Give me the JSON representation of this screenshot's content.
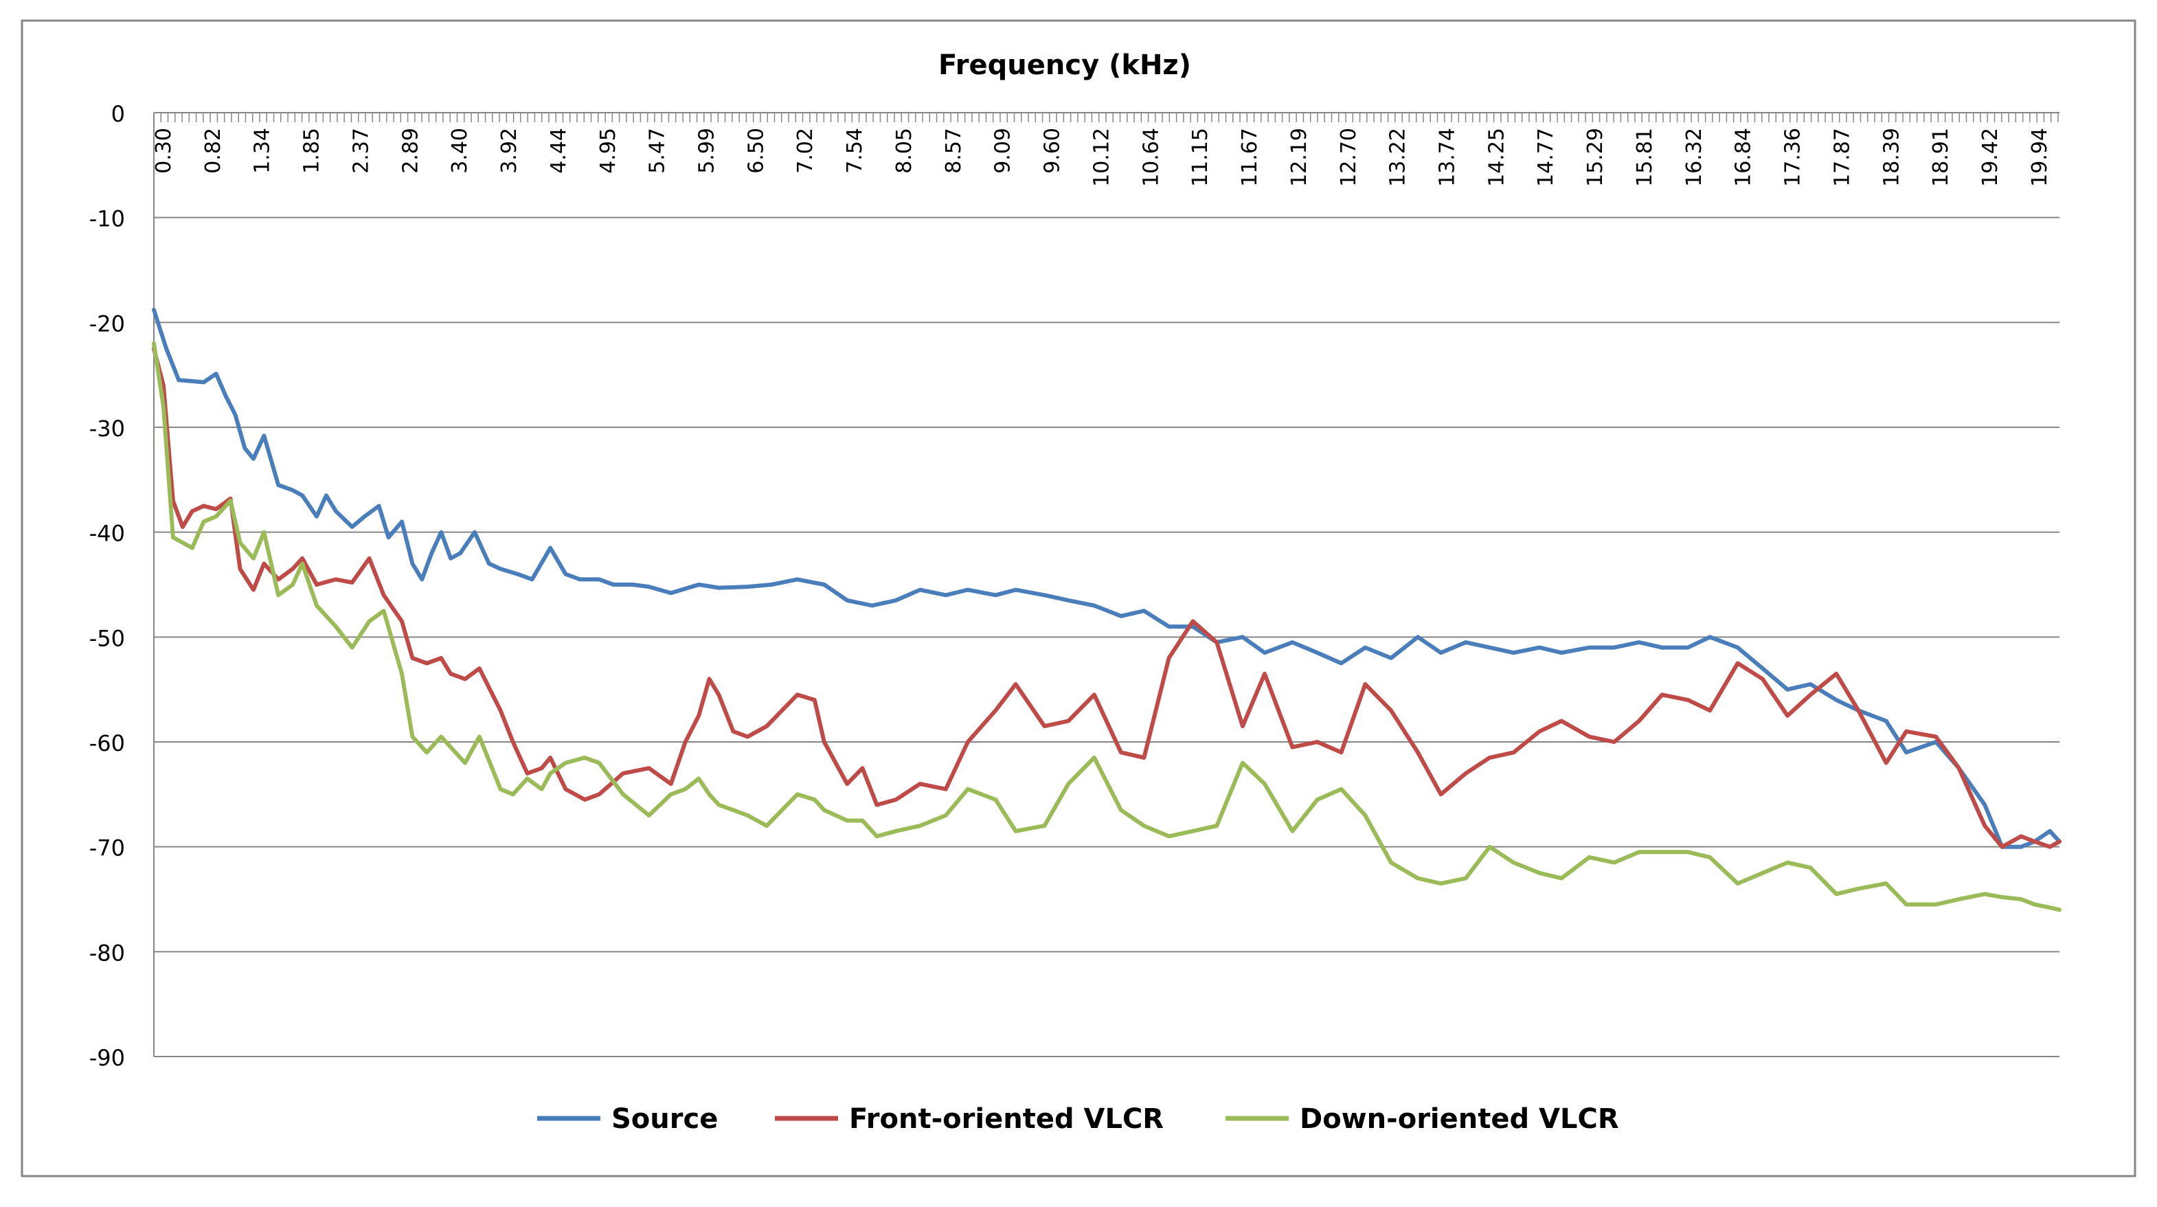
{
  "chart_data": {
    "type": "line",
    "title": "Frequency (kHz)",
    "xlabel": "Frequency (kHz)",
    "ylabel": "",
    "ylim": [
      -90,
      0
    ],
    "yticks": [
      0,
      -10,
      -20,
      -30,
      -40,
      -50,
      -60,
      -70,
      -80,
      -90
    ],
    "x_range_khz": [
      0.3,
      20.2
    ],
    "x_tick_labels": [
      "0.30",
      "0.82",
      "1.34",
      "1.85",
      "2.37",
      "2.89",
      "3.40",
      "3.92",
      "4.44",
      "4.95",
      "5.47",
      "5.99",
      "6.50",
      "7.02",
      "7.54",
      "8.05",
      "8.57",
      "9.09",
      "9.60",
      "10.12",
      "10.64",
      "11.15",
      "11.67",
      "12.19",
      "12.70",
      "13.22",
      "13.74",
      "14.25",
      "14.77",
      "15.29",
      "15.81",
      "16.32",
      "16.84",
      "17.36",
      "17.87",
      "18.39",
      "18.91",
      "19.42",
      "19.94"
    ],
    "legend_position": "bottom",
    "grid": true,
    "series": [
      {
        "name": "Source",
        "color": "#4A7EBB",
        "points": [
          [
            0.3,
            -18.8
          ],
          [
            0.43,
            -22.5
          ],
          [
            0.56,
            -25.5
          ],
          [
            0.69,
            -25.6
          ],
          [
            0.82,
            -25.7
          ],
          [
            0.95,
            -24.9
          ],
          [
            1.05,
            -27.0
          ],
          [
            1.15,
            -28.8
          ],
          [
            1.25,
            -32.0
          ],
          [
            1.34,
            -33.0
          ],
          [
            1.45,
            -30.8
          ],
          [
            1.6,
            -35.5
          ],
          [
            1.75,
            -36.0
          ],
          [
            1.85,
            -36.5
          ],
          [
            2.0,
            -38.5
          ],
          [
            2.1,
            -36.5
          ],
          [
            2.2,
            -38.0
          ],
          [
            2.37,
            -39.5
          ],
          [
            2.5,
            -38.5
          ],
          [
            2.65,
            -37.5
          ],
          [
            2.75,
            -40.5
          ],
          [
            2.89,
            -39.0
          ],
          [
            3.0,
            -43.0
          ],
          [
            3.1,
            -44.5
          ],
          [
            3.2,
            -42.0
          ],
          [
            3.3,
            -40.0
          ],
          [
            3.4,
            -42.5
          ],
          [
            3.5,
            -42.0
          ],
          [
            3.65,
            -40.0
          ],
          [
            3.8,
            -43.0
          ],
          [
            3.92,
            -43.5
          ],
          [
            4.1,
            -44.0
          ],
          [
            4.25,
            -44.5
          ],
          [
            4.44,
            -41.5
          ],
          [
            4.6,
            -44.0
          ],
          [
            4.75,
            -44.5
          ],
          [
            4.95,
            -44.5
          ],
          [
            5.1,
            -45.0
          ],
          [
            5.3,
            -45.0
          ],
          [
            5.47,
            -45.2
          ],
          [
            5.7,
            -45.8
          ],
          [
            5.99,
            -45.0
          ],
          [
            6.2,
            -45.3
          ],
          [
            6.5,
            -45.2
          ],
          [
            6.75,
            -45.0
          ],
          [
            7.02,
            -44.5
          ],
          [
            7.3,
            -45.0
          ],
          [
            7.54,
            -46.5
          ],
          [
            7.8,
            -47.0
          ],
          [
            8.05,
            -46.5
          ],
          [
            8.3,
            -45.5
          ],
          [
            8.57,
            -46.0
          ],
          [
            8.8,
            -45.5
          ],
          [
            9.09,
            -46.0
          ],
          [
            9.3,
            -45.5
          ],
          [
            9.6,
            -46.0
          ],
          [
            9.85,
            -46.5
          ],
          [
            10.12,
            -47.0
          ],
          [
            10.4,
            -48.0
          ],
          [
            10.64,
            -47.5
          ],
          [
            10.9,
            -49.0
          ],
          [
            11.15,
            -49.0
          ],
          [
            11.4,
            -50.5
          ],
          [
            11.67,
            -50.0
          ],
          [
            11.9,
            -51.5
          ],
          [
            12.19,
            -50.5
          ],
          [
            12.45,
            -51.5
          ],
          [
            12.7,
            -52.5
          ],
          [
            12.95,
            -51.0
          ],
          [
            13.22,
            -52.0
          ],
          [
            13.5,
            -50.0
          ],
          [
            13.74,
            -51.5
          ],
          [
            14.0,
            -50.5
          ],
          [
            14.25,
            -51.0
          ],
          [
            14.5,
            -51.5
          ],
          [
            14.77,
            -51.0
          ],
          [
            15.0,
            -51.5
          ],
          [
            15.29,
            -51.0
          ],
          [
            15.55,
            -51.0
          ],
          [
            15.81,
            -50.5
          ],
          [
            16.05,
            -51.0
          ],
          [
            16.32,
            -51.0
          ],
          [
            16.55,
            -50.0
          ],
          [
            16.84,
            -51.0
          ],
          [
            17.1,
            -53.0
          ],
          [
            17.36,
            -55.0
          ],
          [
            17.6,
            -54.5
          ],
          [
            17.87,
            -56.0
          ],
          [
            18.1,
            -57.0
          ],
          [
            18.39,
            -58.0
          ],
          [
            18.6,
            -61.0
          ],
          [
            18.91,
            -60.0
          ],
          [
            19.15,
            -62.5
          ],
          [
            19.42,
            -66.0
          ],
          [
            19.6,
            -70.0
          ],
          [
            19.8,
            -70.0
          ],
          [
            19.94,
            -69.5
          ],
          [
            20.1,
            -68.5
          ],
          [
            20.2,
            -69.5
          ]
        ]
      },
      {
        "name": "Front-oriented VLCR",
        "color": "#BE4B48",
        "points": [
          [
            0.3,
            -22.5
          ],
          [
            0.4,
            -26.0
          ],
          [
            0.5,
            -37.0
          ],
          [
            0.6,
            -39.5
          ],
          [
            0.7,
            -38.0
          ],
          [
            0.82,
            -37.5
          ],
          [
            0.95,
            -37.8
          ],
          [
            1.1,
            -36.8
          ],
          [
            1.2,
            -43.5
          ],
          [
            1.34,
            -45.5
          ],
          [
            1.45,
            -43.0
          ],
          [
            1.6,
            -44.5
          ],
          [
            1.75,
            -43.5
          ],
          [
            1.85,
            -42.5
          ],
          [
            2.0,
            -45.0
          ],
          [
            2.2,
            -44.5
          ],
          [
            2.37,
            -44.8
          ],
          [
            2.55,
            -42.5
          ],
          [
            2.7,
            -46.0
          ],
          [
            2.89,
            -48.5
          ],
          [
            3.0,
            -52.0
          ],
          [
            3.15,
            -52.5
          ],
          [
            3.3,
            -52.0
          ],
          [
            3.4,
            -53.5
          ],
          [
            3.55,
            -54.0
          ],
          [
            3.7,
            -53.0
          ],
          [
            3.92,
            -57.0
          ],
          [
            4.05,
            -60.0
          ],
          [
            4.2,
            -63.0
          ],
          [
            4.35,
            -62.5
          ],
          [
            4.44,
            -61.5
          ],
          [
            4.6,
            -64.5
          ],
          [
            4.8,
            -65.5
          ],
          [
            4.95,
            -65.0
          ],
          [
            5.2,
            -63.0
          ],
          [
            5.47,
            -62.5
          ],
          [
            5.7,
            -64.0
          ],
          [
            5.85,
            -60.0
          ],
          [
            5.99,
            -57.5
          ],
          [
            6.1,
            -54.0
          ],
          [
            6.2,
            -55.5
          ],
          [
            6.35,
            -59.0
          ],
          [
            6.5,
            -59.5
          ],
          [
            6.7,
            -58.5
          ],
          [
            7.02,
            -55.5
          ],
          [
            7.2,
            -56.0
          ],
          [
            7.3,
            -60.0
          ],
          [
            7.54,
            -64.0
          ],
          [
            7.7,
            -62.5
          ],
          [
            7.85,
            -66.0
          ],
          [
            8.05,
            -65.5
          ],
          [
            8.3,
            -64.0
          ],
          [
            8.57,
            -64.5
          ],
          [
            8.8,
            -60.0
          ],
          [
            9.09,
            -57.0
          ],
          [
            9.3,
            -54.5
          ],
          [
            9.6,
            -58.5
          ],
          [
            9.85,
            -58.0
          ],
          [
            10.12,
            -55.5
          ],
          [
            10.4,
            -61.0
          ],
          [
            10.64,
            -61.5
          ],
          [
            10.9,
            -52.0
          ],
          [
            11.15,
            -48.5
          ],
          [
            11.4,
            -50.5
          ],
          [
            11.67,
            -58.5
          ],
          [
            11.9,
            -53.5
          ],
          [
            12.19,
            -60.5
          ],
          [
            12.45,
            -60.0
          ],
          [
            12.7,
            -61.0
          ],
          [
            12.95,
            -54.5
          ],
          [
            13.22,
            -57.0
          ],
          [
            13.5,
            -61.0
          ],
          [
            13.74,
            -65.0
          ],
          [
            14.0,
            -63.0
          ],
          [
            14.25,
            -61.5
          ],
          [
            14.5,
            -61.0
          ],
          [
            14.77,
            -59.0
          ],
          [
            15.0,
            -58.0
          ],
          [
            15.29,
            -59.5
          ],
          [
            15.55,
            -60.0
          ],
          [
            15.81,
            -58.0
          ],
          [
            16.05,
            -55.5
          ],
          [
            16.32,
            -56.0
          ],
          [
            16.55,
            -57.0
          ],
          [
            16.84,
            -52.5
          ],
          [
            17.1,
            -54.0
          ],
          [
            17.36,
            -57.5
          ],
          [
            17.6,
            -55.5
          ],
          [
            17.87,
            -53.5
          ],
          [
            18.1,
            -57.0
          ],
          [
            18.39,
            -62.0
          ],
          [
            18.6,
            -59.0
          ],
          [
            18.91,
            -59.5
          ],
          [
            19.15,
            -62.5
          ],
          [
            19.42,
            -68.0
          ],
          [
            19.6,
            -70.0
          ],
          [
            19.8,
            -69.0
          ],
          [
            19.94,
            -69.5
          ],
          [
            20.1,
            -70.0
          ],
          [
            20.2,
            -69.5
          ]
        ]
      },
      {
        "name": "Down-oriented VLCR",
        "color": "#9BBB59",
        "points": [
          [
            0.3,
            -22.0
          ],
          [
            0.4,
            -28.0
          ],
          [
            0.5,
            -40.5
          ],
          [
            0.6,
            -41.0
          ],
          [
            0.7,
            -41.5
          ],
          [
            0.82,
            -39.0
          ],
          [
            0.95,
            -38.5
          ],
          [
            1.1,
            -37.0
          ],
          [
            1.2,
            -41.0
          ],
          [
            1.34,
            -42.5
          ],
          [
            1.45,
            -40.0
          ],
          [
            1.6,
            -46.0
          ],
          [
            1.75,
            -45.0
          ],
          [
            1.85,
            -43.0
          ],
          [
            2.0,
            -47.0
          ],
          [
            2.2,
            -49.0
          ],
          [
            2.37,
            -51.0
          ],
          [
            2.55,
            -48.5
          ],
          [
            2.7,
            -47.5
          ],
          [
            2.89,
            -53.5
          ],
          [
            3.0,
            -59.5
          ],
          [
            3.15,
            -61.0
          ],
          [
            3.3,
            -59.5
          ],
          [
            3.4,
            -60.5
          ],
          [
            3.55,
            -62.0
          ],
          [
            3.7,
            -59.5
          ],
          [
            3.92,
            -64.5
          ],
          [
            4.05,
            -65.0
          ],
          [
            4.2,
            -63.5
          ],
          [
            4.35,
            -64.5
          ],
          [
            4.44,
            -63.0
          ],
          [
            4.6,
            -62.0
          ],
          [
            4.8,
            -61.5
          ],
          [
            4.95,
            -62.0
          ],
          [
            5.2,
            -65.0
          ],
          [
            5.47,
            -67.0
          ],
          [
            5.7,
            -65.0
          ],
          [
            5.85,
            -64.5
          ],
          [
            5.99,
            -63.5
          ],
          [
            6.1,
            -65.0
          ],
          [
            6.2,
            -66.0
          ],
          [
            6.35,
            -66.5
          ],
          [
            6.5,
            -67.0
          ],
          [
            6.7,
            -68.0
          ],
          [
            7.02,
            -65.0
          ],
          [
            7.2,
            -65.5
          ],
          [
            7.3,
            -66.5
          ],
          [
            7.54,
            -67.5
          ],
          [
            7.7,
            -67.5
          ],
          [
            7.85,
            -69.0
          ],
          [
            8.05,
            -68.5
          ],
          [
            8.3,
            -68.0
          ],
          [
            8.57,
            -67.0
          ],
          [
            8.8,
            -64.5
          ],
          [
            9.09,
            -65.5
          ],
          [
            9.3,
            -68.5
          ],
          [
            9.6,
            -68.0
          ],
          [
            9.85,
            -64.0
          ],
          [
            10.12,
            -61.5
          ],
          [
            10.4,
            -66.5
          ],
          [
            10.64,
            -68.0
          ],
          [
            10.9,
            -69.0
          ],
          [
            11.15,
            -68.5
          ],
          [
            11.4,
            -68.0
          ],
          [
            11.67,
            -62.0
          ],
          [
            11.9,
            -64.0
          ],
          [
            12.19,
            -68.5
          ],
          [
            12.45,
            -65.5
          ],
          [
            12.7,
            -64.5
          ],
          [
            12.95,
            -67.0
          ],
          [
            13.22,
            -71.5
          ],
          [
            13.5,
            -73.0
          ],
          [
            13.74,
            -73.5
          ],
          [
            14.0,
            -73.0
          ],
          [
            14.25,
            -70.0
          ],
          [
            14.5,
            -71.5
          ],
          [
            14.77,
            -72.5
          ],
          [
            15.0,
            -73.0
          ],
          [
            15.29,
            -71.0
          ],
          [
            15.55,
            -71.5
          ],
          [
            15.81,
            -70.5
          ],
          [
            16.05,
            -70.5
          ],
          [
            16.32,
            -70.5
          ],
          [
            16.55,
            -71.0
          ],
          [
            16.84,
            -73.5
          ],
          [
            17.1,
            -72.5
          ],
          [
            17.36,
            -71.5
          ],
          [
            17.6,
            -72.0
          ],
          [
            17.87,
            -74.5
          ],
          [
            18.1,
            -74.0
          ],
          [
            18.39,
            -73.5
          ],
          [
            18.6,
            -75.5
          ],
          [
            18.91,
            -75.5
          ],
          [
            19.15,
            -75.0
          ],
          [
            19.42,
            -74.5
          ],
          [
            19.6,
            -74.8
          ],
          [
            19.8,
            -75.0
          ],
          [
            19.94,
            -75.5
          ],
          [
            20.1,
            -75.8
          ],
          [
            20.2,
            -76.0
          ]
        ]
      }
    ]
  }
}
